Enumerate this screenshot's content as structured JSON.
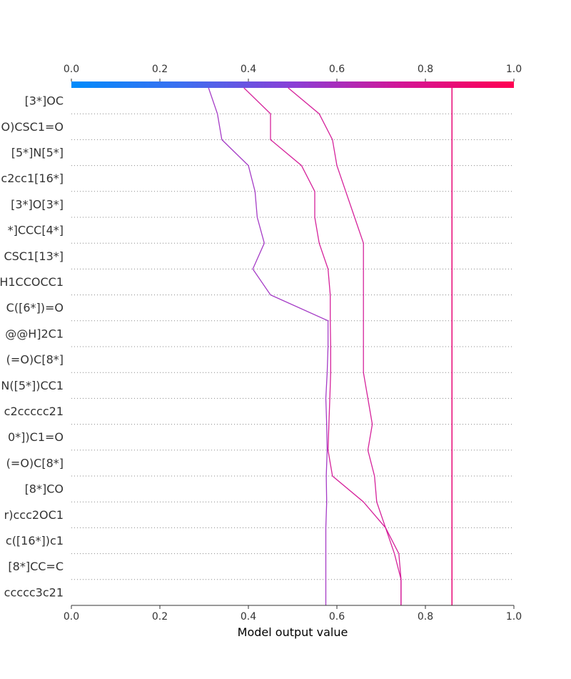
{
  "chart_data": {
    "type": "line",
    "subtype": "shap-decision-plot",
    "title": "",
    "xlabel": "Model output value",
    "xlim": [
      0.0,
      1.0
    ],
    "xticks": [
      "0.0",
      "0.2",
      "0.4",
      "0.6",
      "0.8",
      "1.0"
    ],
    "colorbar_ticks": [
      "0.0",
      "0.2",
      "0.4",
      "0.6",
      "0.8",
      "1.0"
    ],
    "colormap": [
      "#008bfb",
      "#ff0052"
    ],
    "base_value": 0.86,
    "grid": "horizontal-dotted",
    "features": [
      "[3*]OC",
      "O)CSC1=O",
      "[5*]N[5*]",
      "c2cc1[16*]",
      "[3*]O[3*]",
      "*]CCC[4*]",
      "CSC1[13*]",
      "H1CCOCC1",
      "C([6*])=O",
      "@@H]2C1",
      "(=O)C[8*]",
      "N([5*])CC1",
      "c2ccccc21",
      "0*])C1=O",
      "(=O)C[8*]",
      "[8*]CO",
      "r)ccc2OC1",
      "c([16*])c1",
      "[8*]CC=C",
      "ccccc3c21"
    ],
    "series": [
      {
        "values": [
          0.86,
          0.86,
          0.86,
          0.86,
          0.86,
          0.86,
          0.86,
          0.86,
          0.86,
          0.86,
          0.86,
          0.86,
          0.86,
          0.86,
          0.86,
          0.86,
          0.86,
          0.86,
          0.86,
          0.86,
          0.86
        ]
      },
      {
        "values": [
          0.575,
          0.575,
          0.575,
          0.575,
          0.577,
          0.576,
          0.578,
          0.577,
          0.575,
          0.578,
          0.58,
          0.58,
          0.45,
          0.41,
          0.436,
          0.42,
          0.415,
          0.4,
          0.34,
          0.33,
          0.31
        ]
      },
      {
        "values": [
          0.745,
          0.745,
          0.74,
          0.71,
          0.66,
          0.59,
          0.58,
          0.582,
          0.584,
          0.586,
          0.586,
          0.585,
          0.585,
          0.58,
          0.56,
          0.55,
          0.55,
          0.52,
          0.45,
          0.45,
          0.39
        ]
      },
      {
        "values": [
          0.86,
          0.86,
          0.86,
          0.86,
          0.86,
          0.86,
          0.86,
          0.86,
          0.86,
          0.86,
          0.86,
          0.86,
          0.86,
          0.86,
          0.86,
          0.86,
          0.86,
          0.86,
          0.86,
          0.86,
          0.86
        ]
      },
      {
        "values": [
          0.745,
          0.745,
          0.73,
          0.71,
          0.69,
          0.685,
          0.67,
          0.68,
          0.67,
          0.66,
          0.66,
          0.66,
          0.66,
          0.66,
          0.66,
          0.64,
          0.62,
          0.6,
          0.59,
          0.56,
          0.49
        ]
      },
      {
        "values": [
          0.86,
          0.86,
          0.86,
          0.86,
          0.86,
          0.86,
          0.86,
          0.86,
          0.86,
          0.86,
          0.86,
          0.86,
          0.86,
          0.86,
          0.86,
          0.86,
          0.86,
          0.86,
          0.86,
          0.86,
          0.86
        ]
      },
      {
        "values": [
          0.86,
          0.86,
          0.86,
          0.86,
          0.86,
          0.86,
          0.86,
          0.86,
          0.86,
          0.86,
          0.86,
          0.86,
          0.86,
          0.86,
          0.86,
          0.86,
          0.86,
          0.86,
          0.86,
          0.86,
          0.86
        ]
      },
      {
        "values": [
          0.86,
          0.86,
          0.86,
          0.86,
          0.86,
          0.86,
          0.86,
          0.86,
          0.86,
          0.86,
          0.86,
          0.86,
          0.86,
          0.86,
          0.86,
          0.86,
          0.86,
          0.86,
          0.86,
          0.86,
          0.86
        ]
      },
      {
        "values": [
          0.86,
          0.86,
          0.86,
          0.86,
          0.86,
          0.86,
          0.86,
          0.86,
          0.86,
          0.86,
          0.86,
          0.86,
          0.86,
          0.86,
          0.86,
          0.86,
          0.86,
          0.86,
          0.86,
          0.86,
          0.86
        ]
      },
      {
        "values": [
          0.86,
          0.86,
          0.86,
          0.86,
          0.86,
          0.86,
          0.86,
          0.86,
          0.86,
          0.86,
          0.86,
          0.86,
          0.86,
          0.86,
          0.86,
          0.86,
          0.86,
          0.86,
          0.86,
          0.86,
          0.86
        ]
      },
      {
        "values": [
          0.86,
          0.86,
          0.86,
          0.86,
          0.86,
          0.86,
          0.86,
          0.86,
          0.86,
          0.86,
          0.86,
          0.86,
          0.86,
          0.86,
          0.86,
          0.86,
          0.86,
          0.86,
          0.86,
          0.86,
          0.86
        ]
      },
      {
        "values": [
          0.86,
          0.86,
          0.86,
          0.86,
          0.86,
          0.86,
          0.86,
          0.86,
          0.86,
          0.86,
          0.86,
          0.86,
          0.86,
          0.86,
          0.86,
          0.86,
          0.86,
          0.86,
          0.86,
          0.86,
          0.86
        ]
      },
      {
        "values": [
          0.86,
          0.86,
          0.86,
          0.86,
          0.86,
          0.86,
          0.86,
          0.86,
          0.86,
          0.86,
          0.86,
          0.86,
          0.86,
          0.86,
          0.86,
          0.86,
          0.86,
          0.86,
          0.86,
          0.86,
          0.86
        ]
      },
      {
        "values": [
          0.86,
          0.86,
          0.86,
          0.86,
          0.86,
          0.86,
          0.86,
          0.86,
          0.86,
          0.86,
          0.86,
          0.86,
          0.86,
          0.86,
          0.86,
          0.86,
          0.86,
          0.86,
          0.86,
          0.86,
          0.86
        ]
      },
      {
        "values": [
          0.86,
          0.86,
          0.86,
          0.86,
          0.86,
          0.86,
          0.86,
          0.86,
          0.86,
          0.86,
          0.86,
          0.86,
          0.86,
          0.86,
          0.86,
          0.86,
          0.86,
          0.86,
          0.86,
          0.86,
          0.86
        ]
      },
      {
        "values": [
          0.86,
          0.86,
          0.86,
          0.86,
          0.86,
          0.86,
          0.86,
          0.86,
          0.86,
          0.86,
          0.86,
          0.86,
          0.86,
          0.86,
          0.86,
          0.86,
          0.86,
          0.86,
          0.86,
          0.86,
          0.86
        ]
      },
      {
        "values": [
          0.86,
          0.86,
          0.86,
          0.86,
          0.86,
          0.86,
          0.86,
          0.86,
          0.86,
          0.86,
          0.86,
          0.86,
          0.86,
          0.86,
          0.86,
          0.86,
          0.86,
          0.86,
          0.86,
          0.86,
          0.86
        ]
      },
      {
        "values": [
          0.86,
          0.86,
          0.86,
          0.86,
          0.86,
          0.86,
          0.86,
          0.86,
          0.86,
          0.86,
          0.86,
          0.86,
          0.86,
          0.86,
          0.86,
          0.86,
          0.86,
          0.86,
          0.86,
          0.86,
          0.86
        ]
      },
      {
        "values": [
          0.86,
          0.86,
          0.86,
          0.86,
          0.86,
          0.86,
          0.86,
          0.86,
          0.86,
          0.86,
          0.86,
          0.86,
          0.86,
          0.86,
          0.86,
          0.86,
          0.86,
          0.86,
          0.86,
          0.86,
          0.86
        ]
      },
      {
        "values": [
          0.86,
          0.86,
          0.86,
          0.86,
          0.86,
          0.86,
          0.86,
          0.86,
          0.86,
          0.86,
          0.86,
          0.86,
          0.86,
          0.86,
          0.86,
          0.86,
          0.86,
          0.86,
          0.86,
          0.86,
          0.86
        ]
      },
      {
        "values": [
          0.86,
          0.86,
          0.86,
          0.86,
          0.86,
          0.86,
          0.86,
          0.86,
          0.86,
          0.86,
          0.86,
          0.86,
          0.86,
          0.86,
          0.86,
          0.86,
          0.86,
          0.86,
          0.86,
          0.86,
          0.86
        ]
      },
      {
        "values": [
          0.86,
          0.86,
          0.86,
          0.86,
          0.86,
          0.86,
          0.86,
          0.86,
          0.86,
          0.86,
          0.86,
          0.86,
          0.86,
          0.86,
          0.86,
          0.86,
          0.86,
          0.86,
          0.86,
          0.86,
          0.86
        ]
      },
      {
        "values": [
          0.86,
          0.86,
          0.86,
          0.86,
          0.86,
          0.86,
          0.86,
          0.86,
          0.86,
          0.86,
          0.86,
          0.86,
          0.86,
          0.86,
          0.86,
          0.86,
          0.86,
          0.86,
          0.86,
          0.86,
          0.86
        ]
      },
      {
        "values": [
          0.86,
          0.86,
          0.86,
          0.86,
          0.86,
          0.86,
          0.86,
          0.86,
          0.86,
          0.86,
          0.86,
          0.86,
          0.86,
          0.86,
          0.86,
          0.86,
          0.86,
          0.86,
          0.86,
          0.86,
          0.86
        ]
      },
      {
        "values": [
          0.86,
          0.86,
          0.86,
          0.86,
          0.86,
          0.86,
          0.86,
          0.86,
          0.86,
          0.86,
          0.86,
          0.86,
          0.86,
          0.86,
          0.86,
          0.86,
          0.86,
          0.86,
          0.86,
          0.86,
          0.86
        ]
      },
      {
        "values": [
          0.86,
          0.86,
          0.86,
          0.86,
          0.86,
          0.86,
          0.86,
          0.86,
          0.86,
          0.86,
          0.86,
          0.86,
          0.86,
          0.86,
          0.86,
          0.86,
          0.86,
          0.86,
          0.86,
          0.86,
          0.86
        ]
      },
      {
        "values": [
          0.86,
          0.86,
          0.86,
          0.86,
          0.86,
          0.86,
          0.86,
          0.86,
          0.86,
          0.86,
          0.86,
          0.86,
          0.86,
          0.86,
          0.86,
          0.86,
          0.86,
          0.86,
          0.86,
          0.86,
          0.86
        ]
      },
      {
        "values": [
          0.86,
          0.86,
          0.86,
          0.86,
          0.86,
          0.86,
          0.86,
          0.86,
          0.86,
          0.86,
          0.86,
          0.86,
          0.86,
          0.86,
          0.86,
          0.86,
          0.86,
          0.86,
          0.86,
          0.86,
          0.86
        ]
      },
      {
        "values": [
          0.86,
          0.86,
          0.86,
          0.86,
          0.86,
          0.86,
          0.86,
          0.86,
          0.86,
          0.86,
          0.86,
          0.86,
          0.86,
          0.86,
          0.86,
          0.86,
          0.86,
          0.86,
          0.86,
          0.86,
          0.86
        ]
      },
      {
        "values": [
          0.86,
          0.86,
          0.86,
          0.86,
          0.86,
          0.86,
          0.86,
          0.86,
          0.86,
          0.86,
          0.86,
          0.86,
          0.86,
          0.86,
          0.86,
          0.86,
          0.86,
          0.86,
          0.86,
          0.86,
          0.86
        ]
      }
    ]
  }
}
